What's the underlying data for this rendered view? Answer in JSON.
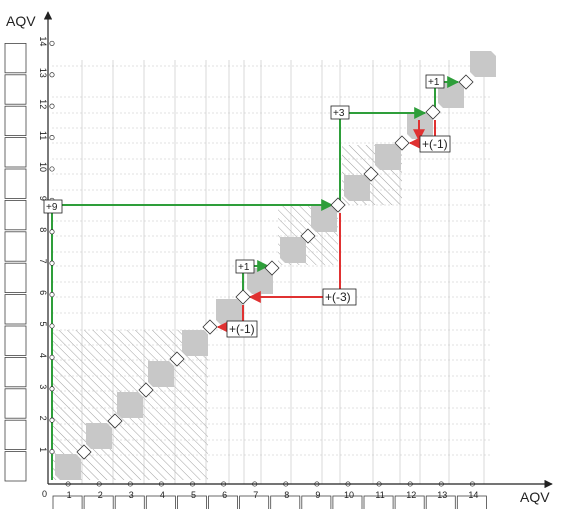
{
  "axes": {
    "x_label": "AQV",
    "y_label": "AQV",
    "origin_label": "0",
    "x_ticks": [
      "1",
      "2",
      "3",
      "4",
      "5",
      "6",
      "7",
      "8",
      "9",
      "10",
      "11",
      "12",
      "13",
      "14"
    ],
    "y_ticks": [
      "1",
      "2",
      "3",
      "4",
      "5",
      "6",
      "7",
      "8",
      "9",
      "10",
      "11",
      "12",
      "13",
      "14"
    ]
  },
  "annotations": {
    "plus_nine": "+9",
    "plus_three": "+3",
    "plus_one_upper": "+1",
    "plus_one_lower": "+1",
    "minus_one_upper": "+(-1)",
    "minus_one_lower": "+(-1)",
    "minus_three": "+(-3)"
  },
  "colors": {
    "green_path": "#2e9e3a",
    "red_path": "#e03131",
    "block": "#c8c8c8",
    "hatch": "#8a8a8a"
  }
}
